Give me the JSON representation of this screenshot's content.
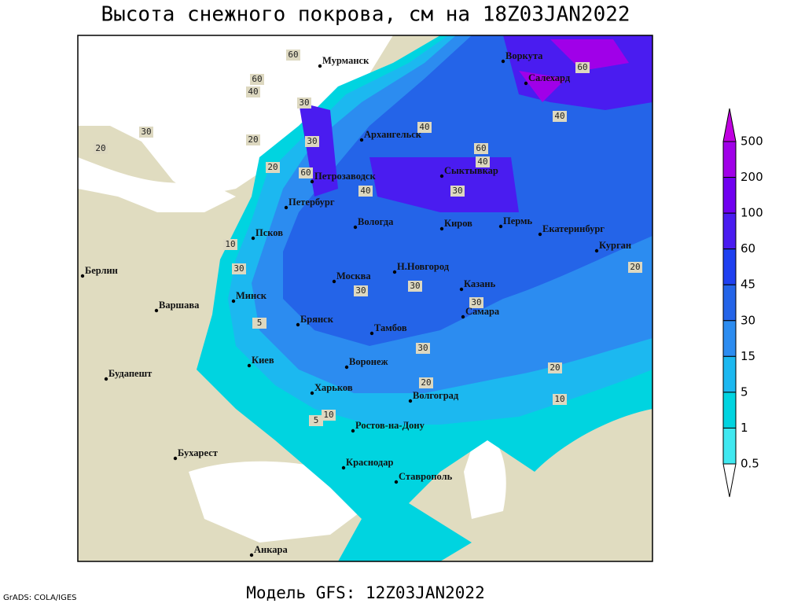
{
  "title": "Высота снежного покрова, см на 18Z03JAN2022",
  "footer": "Модель GFS: 12Z03JAN2022",
  "credit": "GrADS: COLA/IGES",
  "cities": [
    "Мурманск",
    "Воркута",
    "Салехард",
    "Архангельск",
    "Сыктывкар",
    "Петрозаводск",
    "Петербург",
    "Вологда",
    "Киров",
    "Пермь",
    "Екатеринбург",
    "Курган",
    "Псков",
    "Н.Новгород",
    "Казань",
    "Москва",
    "Минск",
    "Берлин",
    "Варшава",
    "Брянск",
    "Тамбов",
    "Самара",
    "Воронеж",
    "Киев",
    "Харьков",
    "Волгоград",
    "Будапешт",
    "Ростов-на-Дону",
    "Бухарест",
    "Краснодар",
    "Ставрополь",
    "Анкара"
  ],
  "contour_labels": [
    "60",
    "60",
    "40",
    "30",
    "20",
    "30",
    "40",
    "20",
    "60",
    "40",
    "60",
    "40",
    "30",
    "10",
    "30",
    "30",
    "20",
    "30",
    "30",
    "30",
    "20",
    "10",
    "5",
    "10",
    "5",
    "30",
    "20",
    "20",
    "60",
    "40"
  ],
  "legend": {
    "labels": [
      "500",
      "200",
      "100",
      "60",
      "45",
      "30",
      "15",
      "5",
      "1",
      "0.5"
    ],
    "colors": [
      "#c000e0",
      "#a000e8",
      "#7000f0",
      "#4a1cf0",
      "#1f40f0",
      "#2464e8",
      "#2c8cf0",
      "#1cb8f0",
      "#00d4e0",
      "#40e8f0",
      "#ffffff"
    ]
  }
}
